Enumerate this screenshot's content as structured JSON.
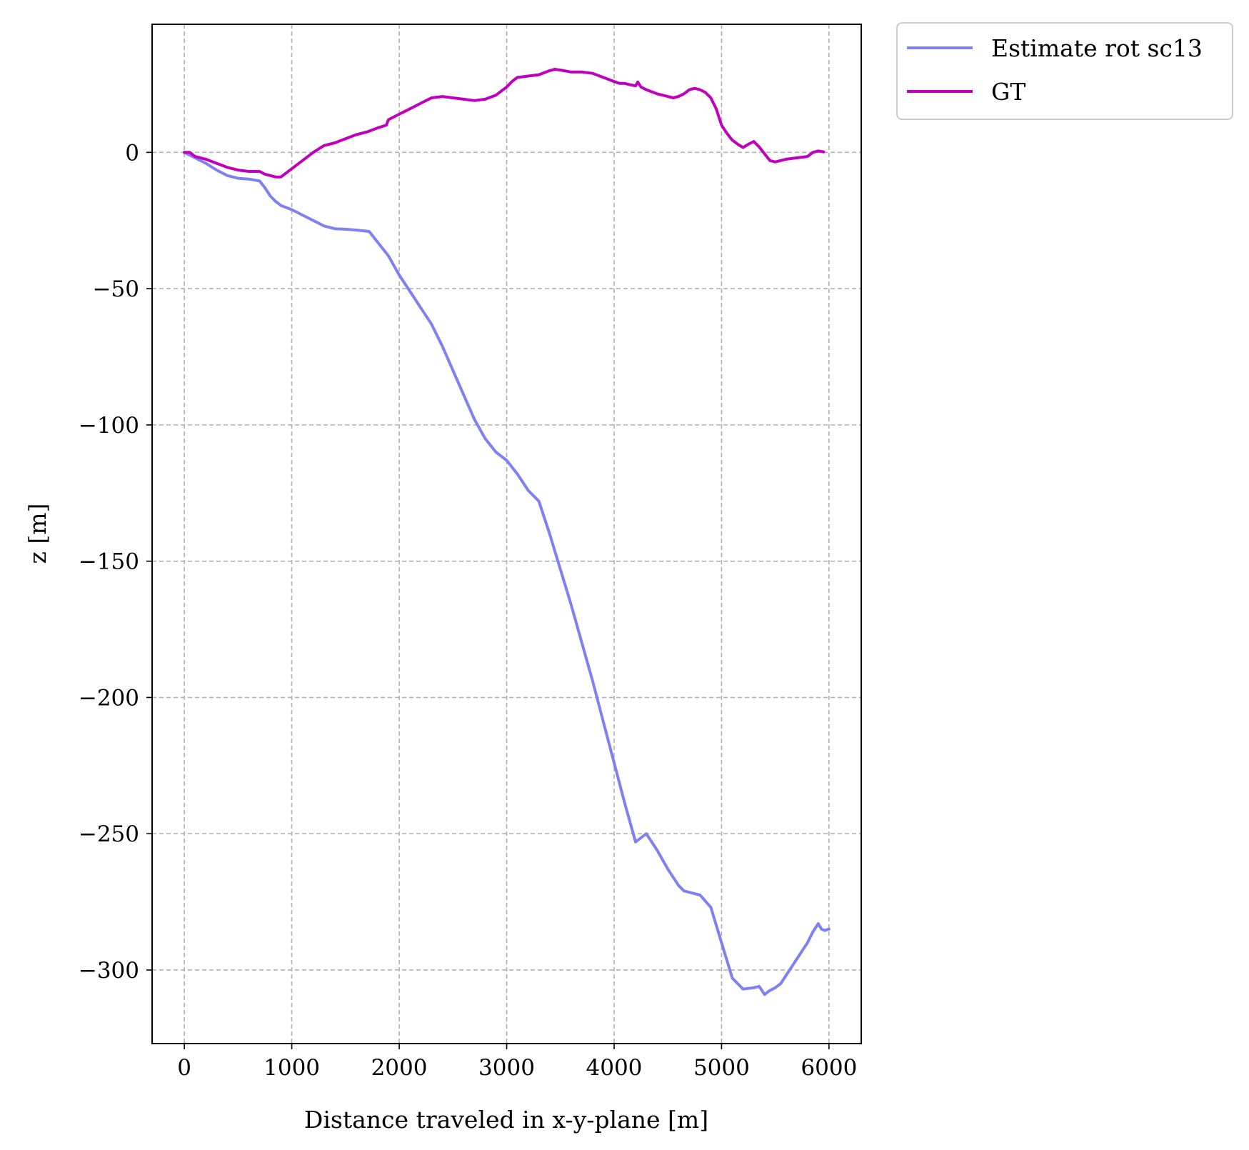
{
  "chart_data": {
    "type": "line",
    "xlabel": "Distance traveled in x-y-plane [m]",
    "ylabel": "z [m]",
    "xlim": [
      -300,
      6300
    ],
    "ylim": [
      -327,
      47
    ],
    "xticks": [
      0,
      1000,
      2000,
      3000,
      4000,
      5000,
      6000
    ],
    "xtick_labels": [
      "0",
      "1000",
      "2000",
      "3000",
      "4000",
      "5000",
      "6000"
    ],
    "yticks": [
      0,
      -50,
      -100,
      -150,
      -200,
      -250,
      -300
    ],
    "ytick_labels": [
      "0",
      "−50",
      "−100",
      "−150",
      "−200",
      "−250",
      "−300"
    ],
    "grid": true,
    "legend_position": "outside top-right",
    "series": [
      {
        "name": "Estimate rot sc13",
        "color": "#8080f5",
        "x": [
          0,
          100,
          200,
          300,
          400,
          500,
          600,
          700,
          750,
          800,
          850,
          900,
          1000,
          1100,
          1200,
          1300,
          1400,
          1500,
          1600,
          1720,
          1800,
          1900,
          2000,
          2100,
          2200,
          2300,
          2400,
          2500,
          2600,
          2700,
          2800,
          2900,
          3000,
          3100,
          3200,
          3300,
          3400,
          3500,
          3600,
          3700,
          3800,
          3900,
          4000,
          4100,
          4200,
          4300,
          4400,
          4500,
          4600,
          4650,
          4700,
          4800,
          4900,
          5000,
          5100,
          5200,
          5300,
          5350,
          5400,
          5450,
          5500,
          5550,
          5600,
          5700,
          5800,
          5850,
          5900,
          5930,
          5960,
          6000
        ],
        "y": [
          0,
          -2,
          -4,
          -6.5,
          -8.5,
          -9.5,
          -9.8,
          -10.5,
          -13,
          -16,
          -18,
          -19.5,
          -21,
          -23,
          -25,
          -27,
          -28,
          -28.2,
          -28.5,
          -29,
          -33,
          -38,
          -45,
          -51,
          -57,
          -63,
          -71,
          -80,
          -89,
          -98,
          -105,
          -110,
          -113,
          -118,
          -124,
          -128,
          -140,
          -153,
          -166,
          -180,
          -194,
          -209,
          -224,
          -239,
          -253,
          -250,
          -256,
          -263,
          -269,
          -271,
          -271.5,
          -272.5,
          -277,
          -290,
          -303,
          -307,
          -306.5,
          -306,
          -309,
          -307.5,
          -306.5,
          -305,
          -302,
          -296,
          -290,
          -286,
          -283,
          -285,
          -285.5,
          -285
        ]
      },
      {
        "name": "GT",
        "color": "#bf00bf",
        "x": [
          0,
          50,
          100,
          200,
          300,
          400,
          500,
          600,
          700,
          750,
          800,
          850,
          900,
          1000,
          1100,
          1200,
          1300,
          1400,
          1500,
          1600,
          1700,
          1800,
          1880,
          1900,
          2000,
          2100,
          2200,
          2300,
          2400,
          2500,
          2600,
          2700,
          2800,
          2900,
          3000,
          3050,
          3100,
          3200,
          3300,
          3400,
          3450,
          3500,
          3600,
          3700,
          3800,
          3900,
          4000,
          4050,
          4100,
          4150,
          4200,
          4220,
          4250,
          4300,
          4400,
          4500,
          4550,
          4600,
          4650,
          4700,
          4750,
          4800,
          4850,
          4900,
          4950,
          5000,
          5050,
          5100,
          5150,
          5200,
          5250,
          5300,
          5350,
          5400,
          5450,
          5500,
          5550,
          5600,
          5700,
          5800,
          5850,
          5900,
          5950
        ],
        "y": [
          0,
          0,
          -1.5,
          -2.5,
          -4,
          -5.5,
          -6.5,
          -7,
          -7,
          -8,
          -8.5,
          -9,
          -9,
          -6,
          -3,
          0,
          2.5,
          3.5,
          5,
          6.5,
          7.5,
          9,
          10,
          12,
          14,
          16,
          18,
          20,
          20.5,
          20,
          19.5,
          19,
          19.5,
          21,
          24,
          26,
          27.5,
          28,
          28.5,
          30,
          30.5,
          30.2,
          29.5,
          29.5,
          29,
          27.5,
          26,
          25.3,
          25.3,
          24.8,
          24.4,
          25.8,
          24,
          23,
          21.5,
          20.5,
          20,
          20.5,
          21.5,
          23,
          23.5,
          23,
          22,
          20,
          16,
          10,
          7,
          4.5,
          3,
          1.8,
          3,
          4,
          2,
          -0.5,
          -3,
          -3.5,
          -3,
          -2.5,
          -2,
          -1.5,
          0,
          0.5,
          0.2
        ]
      }
    ]
  }
}
